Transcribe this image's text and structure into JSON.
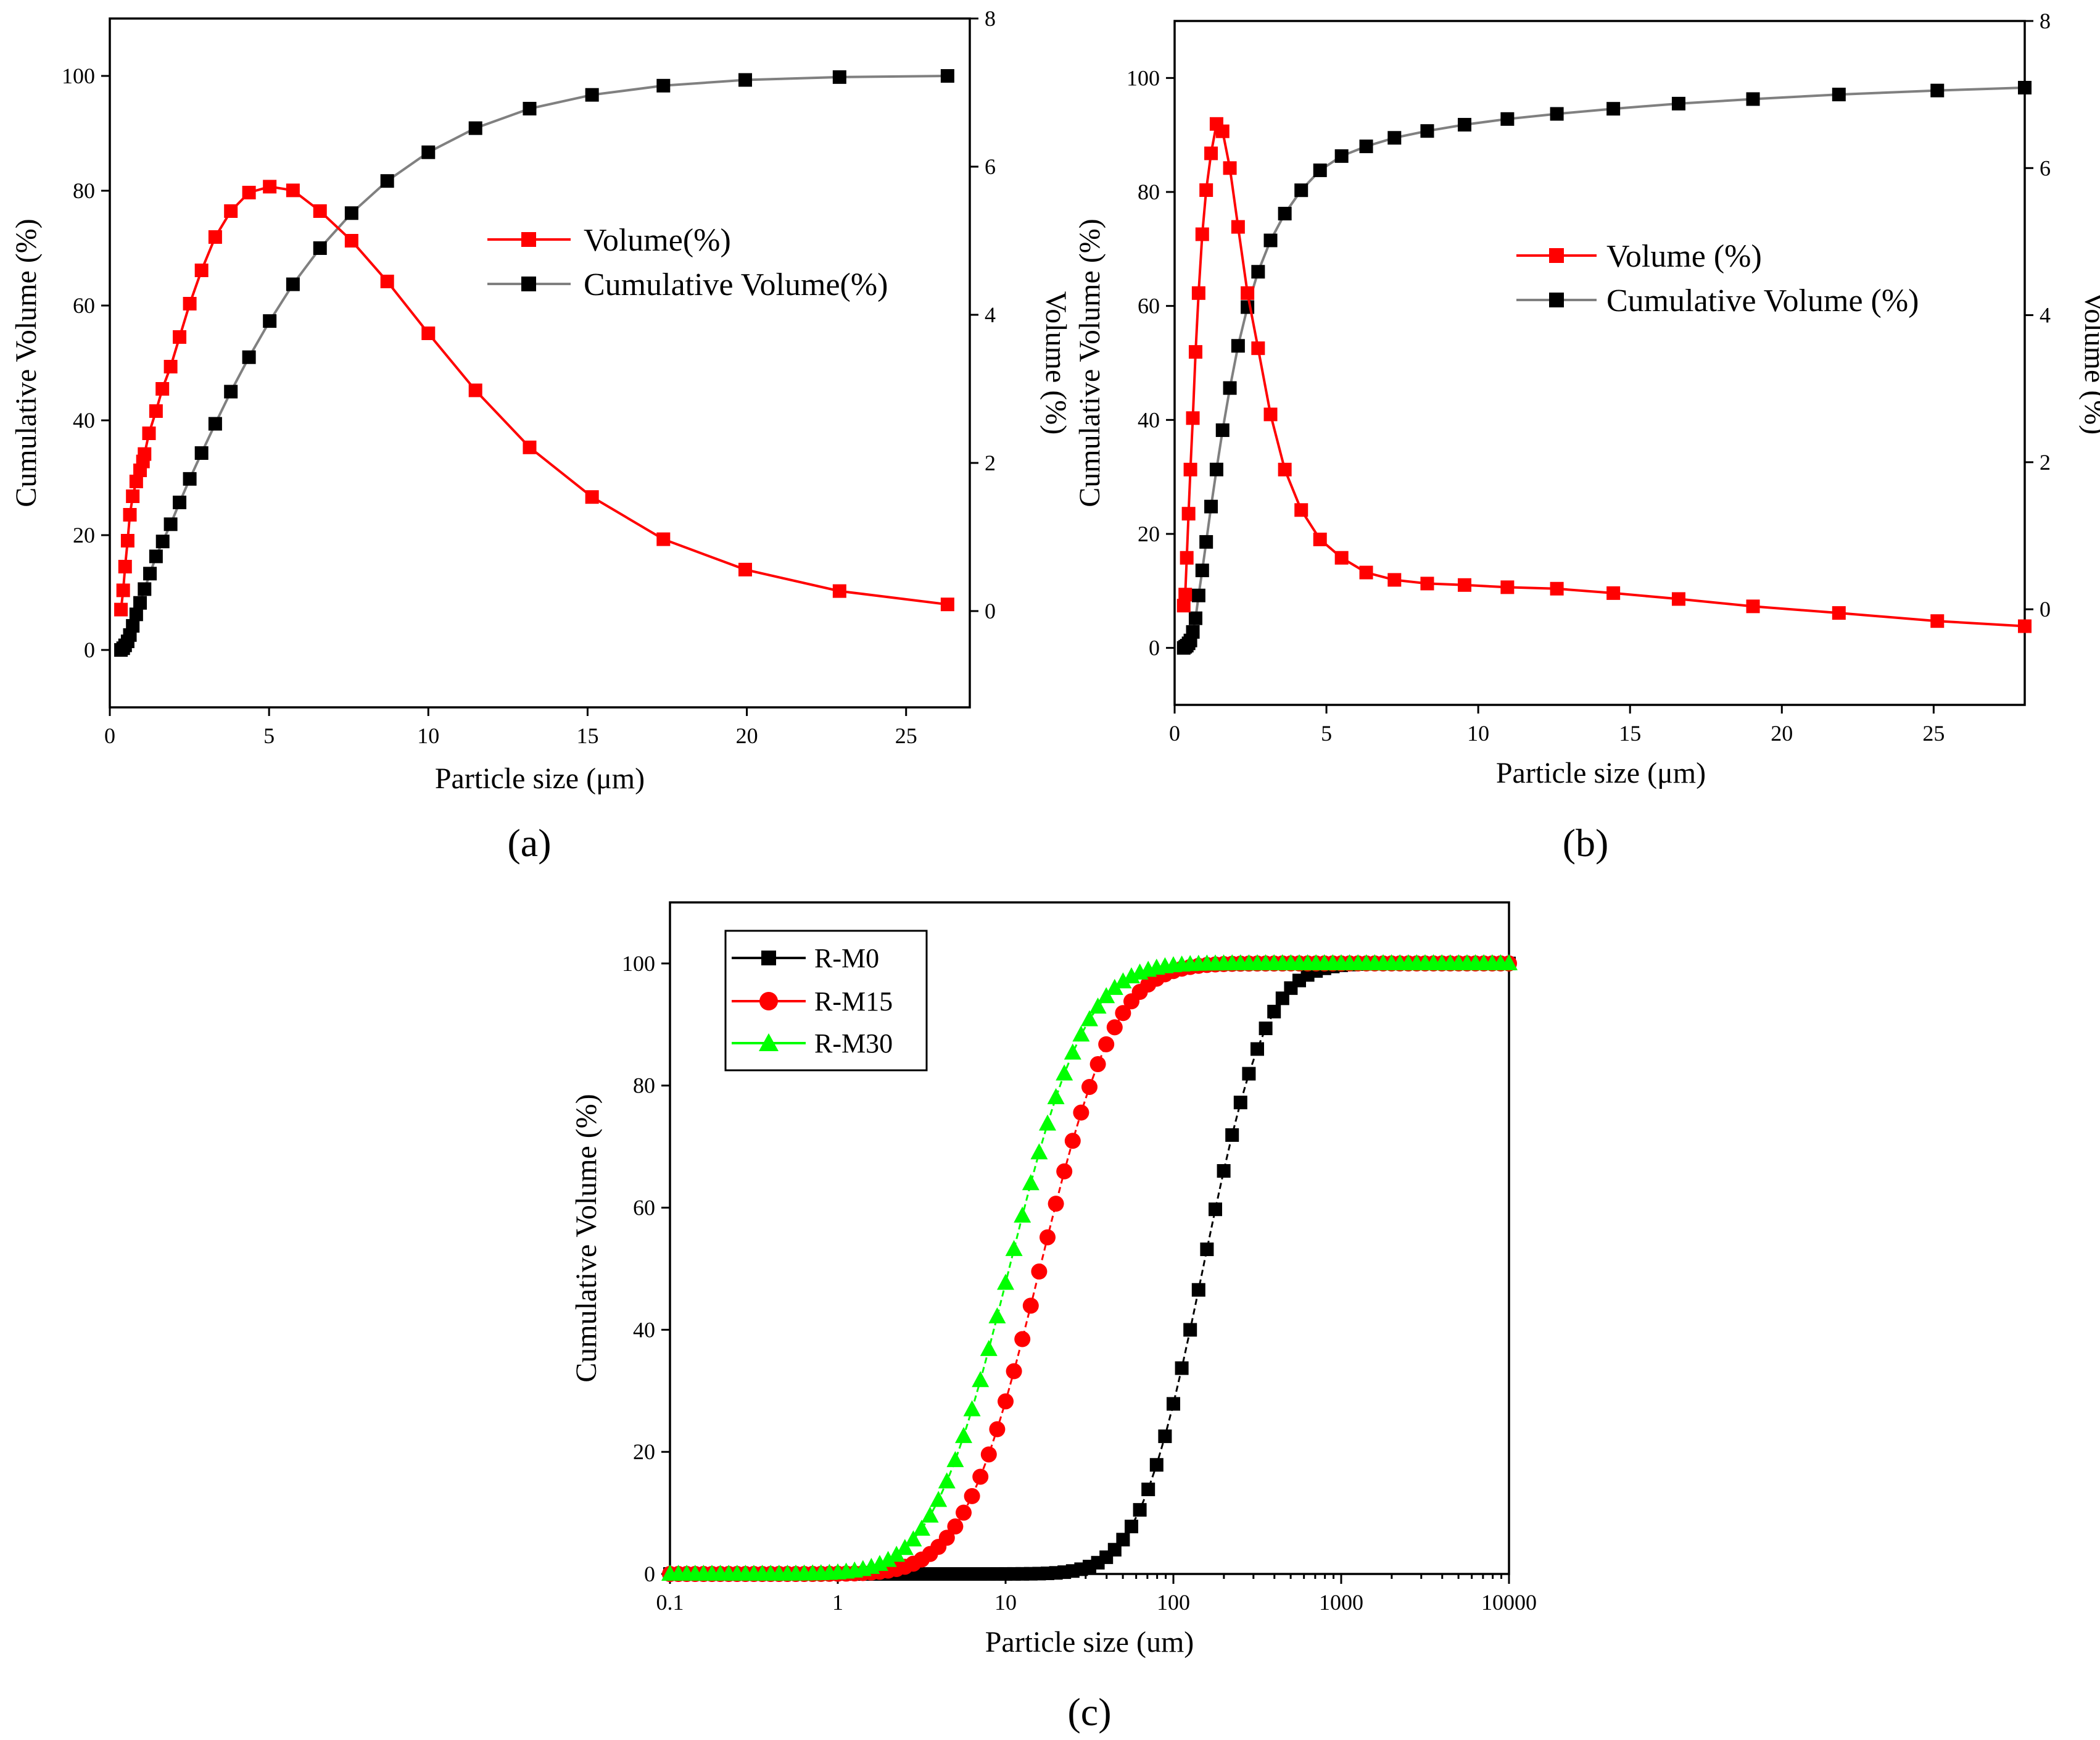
{
  "figure": {
    "panels": [
      "(a)",
      "(b)",
      "(c)"
    ]
  },
  "colors": {
    "volume": "#ff0000",
    "cumulative": "#000000",
    "cumulative_line": "#808080",
    "rm0": "#000000",
    "rm15": "#ff0000",
    "rm30": "#00ff00"
  },
  "chart_data": [
    {
      "id": "a",
      "type": "line",
      "title": "",
      "panel_label": "(a)",
      "xlabel": "Particle size (μm)",
      "ylabel_left": "Cumulative Volume (%)",
      "ylabel_right": "Volume (%)",
      "xlim": [
        0,
        27
      ],
      "ylim_left": [
        -10,
        110
      ],
      "ylim_right": [
        -1.3,
        8.0
      ],
      "xticks": [
        0,
        5,
        10,
        15,
        20,
        25
      ],
      "yticks_left": [
        0,
        20,
        40,
        60,
        80,
        100
      ],
      "yticks_right": [
        0,
        2,
        4,
        6,
        8
      ],
      "legend": {
        "position": "center-right",
        "entries": [
          "Volume(%)",
          "Cumulative Volume(%)"
        ]
      },
      "series": [
        {
          "name": "Volume(%)",
          "axis": "right",
          "color": "#ff0000",
          "marker": "square",
          "x": [
            0.35,
            0.42,
            0.48,
            0.56,
            0.63,
            0.72,
            0.83,
            0.95,
            1.04,
            1.09,
            1.23,
            1.45,
            1.65,
            1.91,
            2.19,
            2.51,
            2.88,
            3.31,
            3.8,
            4.37,
            5.02,
            5.75,
            6.6,
            7.59,
            8.71,
            10.0,
            11.48,
            13.18,
            15.14,
            17.38,
            19.95,
            22.91,
            26.3
          ],
          "y": [
            0.02,
            0.28,
            0.6,
            0.95,
            1.3,
            1.55,
            1.75,
            1.9,
            2.02,
            2.12,
            2.4,
            2.7,
            3.0,
            3.3,
            3.7,
            4.15,
            4.6,
            5.05,
            5.4,
            5.65,
            5.73,
            5.68,
            5.4,
            5.0,
            4.45,
            3.75,
            2.98,
            2.21,
            1.54,
            0.97,
            0.56,
            0.27,
            0.09
          ]
        },
        {
          "name": "Cumulative Volume(%)",
          "axis": "left",
          "color": "#000000",
          "line_color": "#808080",
          "marker": "square",
          "x": [
            0.35,
            0.42,
            0.48,
            0.56,
            0.63,
            0.72,
            0.83,
            0.95,
            1.09,
            1.26,
            1.45,
            1.66,
            1.91,
            2.19,
            2.51,
            2.88,
            3.31,
            3.8,
            4.37,
            5.02,
            5.75,
            6.6,
            7.59,
            8.71,
            10.0,
            11.48,
            13.18,
            15.14,
            17.38,
            19.95,
            22.91,
            26.3
          ],
          "y": [
            0,
            0.3,
            0.8,
            1.5,
            2.6,
            4.2,
            6.2,
            8.2,
            10.6,
            13.3,
            16.3,
            18.9,
            21.9,
            25.7,
            29.8,
            34.3,
            39.4,
            45.0,
            51.0,
            57.3,
            63.7,
            70.0,
            76.1,
            81.7,
            86.7,
            90.9,
            94.3,
            96.7,
            98.3,
            99.3,
            99.8,
            100.0
          ]
        }
      ]
    },
    {
      "id": "b",
      "type": "line",
      "title": "",
      "panel_label": "(b)",
      "xlabel": "Particle size (μm)",
      "ylabel_left": "Cumulative Volume (%)",
      "ylabel_right": "Volume (%)",
      "xlim": [
        0,
        28
      ],
      "ylim_left": [
        -10,
        110
      ],
      "ylim_right": [
        -1.3,
        8.0
      ],
      "xticks": [
        0,
        5,
        10,
        15,
        20,
        25
      ],
      "yticks_left": [
        0,
        20,
        40,
        60,
        80,
        100
      ],
      "yticks_right": [
        0,
        2,
        4,
        6,
        8
      ],
      "legend": {
        "position": "center-right",
        "entries": [
          "Volume (%)",
          "Cumulative Volume (%)"
        ]
      },
      "series": [
        {
          "name": "Volume (%)",
          "axis": "right",
          "color": "#ff0000",
          "marker": "square",
          "x": [
            0.3,
            0.35,
            0.4,
            0.46,
            0.52,
            0.6,
            0.69,
            0.79,
            0.91,
            1.04,
            1.2,
            1.38,
            1.58,
            1.82,
            2.09,
            2.4,
            2.75,
            3.16,
            3.63,
            4.17,
            4.79,
            5.5,
            6.31,
            7.24,
            8.32,
            9.55,
            10.96,
            12.59,
            14.45,
            16.6,
            19.05,
            21.88,
            25.12,
            28.0
          ],
          "y": [
            0.05,
            0.2,
            0.7,
            1.3,
            1.9,
            2.6,
            3.5,
            4.3,
            5.1,
            5.7,
            6.2,
            6.6,
            6.5,
            6.0,
            5.2,
            4.3,
            3.55,
            2.65,
            1.9,
            1.35,
            0.95,
            0.7,
            0.5,
            0.4,
            0.35,
            0.33,
            0.3,
            0.28,
            0.22,
            0.14,
            0.04,
            -0.05,
            -0.16,
            -0.23
          ]
        },
        {
          "name": "Cumulative Volume (%)",
          "axis": "left",
          "color": "#000000",
          "line_color": "#808080",
          "marker": "square",
          "x": [
            0.3,
            0.35,
            0.4,
            0.46,
            0.52,
            0.6,
            0.69,
            0.79,
            0.91,
            1.04,
            1.2,
            1.38,
            1.58,
            1.82,
            2.09,
            2.4,
            2.75,
            3.16,
            3.63,
            4.17,
            4.79,
            5.5,
            6.31,
            7.24,
            8.32,
            9.55,
            10.96,
            12.59,
            14.45,
            16.6,
            19.05,
            21.88,
            25.12,
            28.0
          ],
          "y": [
            0,
            0.2,
            0.4,
            0.8,
            1.3,
            2.8,
            5.2,
            9.2,
            13.6,
            18.6,
            24.8,
            31.3,
            38.2,
            45.6,
            53.0,
            59.8,
            66.0,
            71.5,
            76.2,
            80.3,
            83.8,
            86.3,
            88.0,
            89.5,
            90.7,
            91.8,
            92.8,
            93.7,
            94.6,
            95.5,
            96.3,
            97.1,
            97.8,
            98.3
          ]
        }
      ]
    },
    {
      "id": "c",
      "type": "scatter",
      "title": "",
      "panel_label": "(c)",
      "xlabel": "Particle size (um)",
      "ylabel": "Cumulative Volume (%)",
      "xscale": "log",
      "xlim": [
        0.1,
        10000
      ],
      "ylim": [
        0,
        110
      ],
      "xticks": [
        0.1,
        1,
        10,
        100,
        1000,
        10000
      ],
      "xtick_labels": [
        "0.1",
        "1",
        "10",
        "100",
        "1000",
        "10000"
      ],
      "yticks": [
        0,
        20,
        40,
        60,
        80,
        100
      ],
      "legend": {
        "position": "top-left",
        "entries": [
          "R-M0",
          "R-M15",
          "R-M30"
        ]
      },
      "series": [
        {
          "name": "R-M0",
          "color": "#000000",
          "marker": "square",
          "d50_um": 150,
          "spread_log10": 0.3
        },
        {
          "name": "R-M15",
          "color": "#ff0000",
          "marker": "circle",
          "d50_um": 16,
          "spread_log10": 0.355
        },
        {
          "name": "R-M30",
          "color": "#00ff00",
          "marker": "triangle",
          "d50_um": 10.5,
          "spread_log10": 0.36
        }
      ]
    }
  ]
}
